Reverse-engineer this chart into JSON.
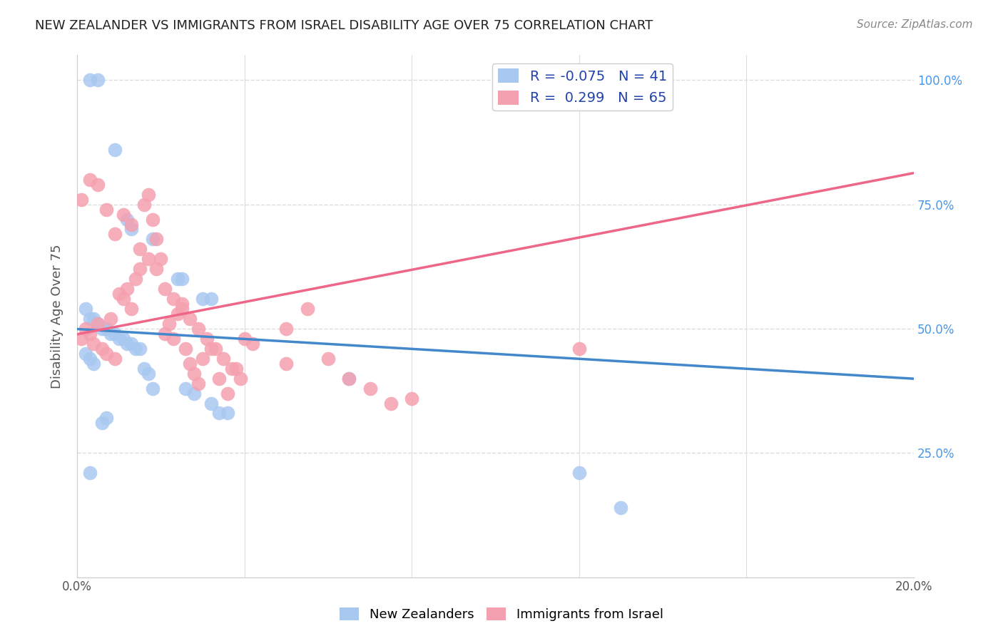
{
  "title": "NEW ZEALANDER VS IMMIGRANTS FROM ISRAEL DISABILITY AGE OVER 75 CORRELATION CHART",
  "source": "Source: ZipAtlas.com",
  "ylabel": "Disability Age Over 75",
  "legend_label_1": "New Zealanders",
  "legend_label_2": "Immigrants from Israel",
  "R1": -0.075,
  "N1": 41,
  "R2": 0.299,
  "N2": 65,
  "color1": "#a8c8f0",
  "color2": "#f5a0b0",
  "line_color1": "#4488cc",
  "line_color2": "#ee6688",
  "xmin": 0.0,
  "xmax": 0.2,
  "ymin": 0.0,
  "ymax": 1.05,
  "background_color": "#ffffff",
  "grid_color": "#dddddd",
  "nz_x": [
    0.003,
    0.005,
    0.009,
    0.012,
    0.013,
    0.018,
    0.024,
    0.025,
    0.03,
    0.032,
    0.002,
    0.003,
    0.004,
    0.005,
    0.006,
    0.007,
    0.008,
    0.009,
    0.01,
    0.011,
    0.012,
    0.013,
    0.014,
    0.015,
    0.002,
    0.003,
    0.004,
    0.016,
    0.017,
    0.018,
    0.026,
    0.028,
    0.032,
    0.034,
    0.036,
    0.065,
    0.003,
    0.12,
    0.13,
    0.006,
    0.007
  ],
  "nz_y": [
    1.0,
    1.0,
    0.86,
    0.72,
    0.7,
    0.68,
    0.6,
    0.6,
    0.56,
    0.56,
    0.54,
    0.52,
    0.52,
    0.51,
    0.5,
    0.5,
    0.49,
    0.49,
    0.48,
    0.48,
    0.47,
    0.47,
    0.46,
    0.46,
    0.45,
    0.44,
    0.43,
    0.42,
    0.41,
    0.38,
    0.38,
    0.37,
    0.35,
    0.33,
    0.33,
    0.4,
    0.21,
    0.21,
    0.14,
    0.31,
    0.32
  ],
  "israel_x": [
    0.001,
    0.002,
    0.003,
    0.004,
    0.005,
    0.006,
    0.007,
    0.008,
    0.009,
    0.01,
    0.011,
    0.012,
    0.013,
    0.014,
    0.015,
    0.016,
    0.017,
    0.018,
    0.019,
    0.02,
    0.021,
    0.022,
    0.023,
    0.024,
    0.025,
    0.026,
    0.027,
    0.028,
    0.029,
    0.03,
    0.032,
    0.034,
    0.036,
    0.038,
    0.04,
    0.042,
    0.05,
    0.055,
    0.06,
    0.065,
    0.07,
    0.075,
    0.08,
    0.001,
    0.003,
    0.005,
    0.007,
    0.009,
    0.011,
    0.013,
    0.015,
    0.017,
    0.019,
    0.021,
    0.023,
    0.025,
    0.027,
    0.029,
    0.031,
    0.033,
    0.035,
    0.037,
    0.039,
    0.05,
    0.12
  ],
  "israel_y": [
    0.48,
    0.5,
    0.49,
    0.47,
    0.51,
    0.46,
    0.45,
    0.52,
    0.44,
    0.57,
    0.56,
    0.58,
    0.54,
    0.6,
    0.62,
    0.75,
    0.77,
    0.72,
    0.68,
    0.64,
    0.49,
    0.51,
    0.48,
    0.53,
    0.55,
    0.46,
    0.43,
    0.41,
    0.39,
    0.44,
    0.46,
    0.4,
    0.37,
    0.42,
    0.48,
    0.47,
    0.5,
    0.54,
    0.44,
    0.4,
    0.38,
    0.35,
    0.36,
    0.76,
    0.8,
    0.79,
    0.74,
    0.69,
    0.73,
    0.71,
    0.66,
    0.64,
    0.62,
    0.58,
    0.56,
    0.54,
    0.52,
    0.5,
    0.48,
    0.46,
    0.44,
    0.42,
    0.4,
    0.43,
    0.46
  ]
}
